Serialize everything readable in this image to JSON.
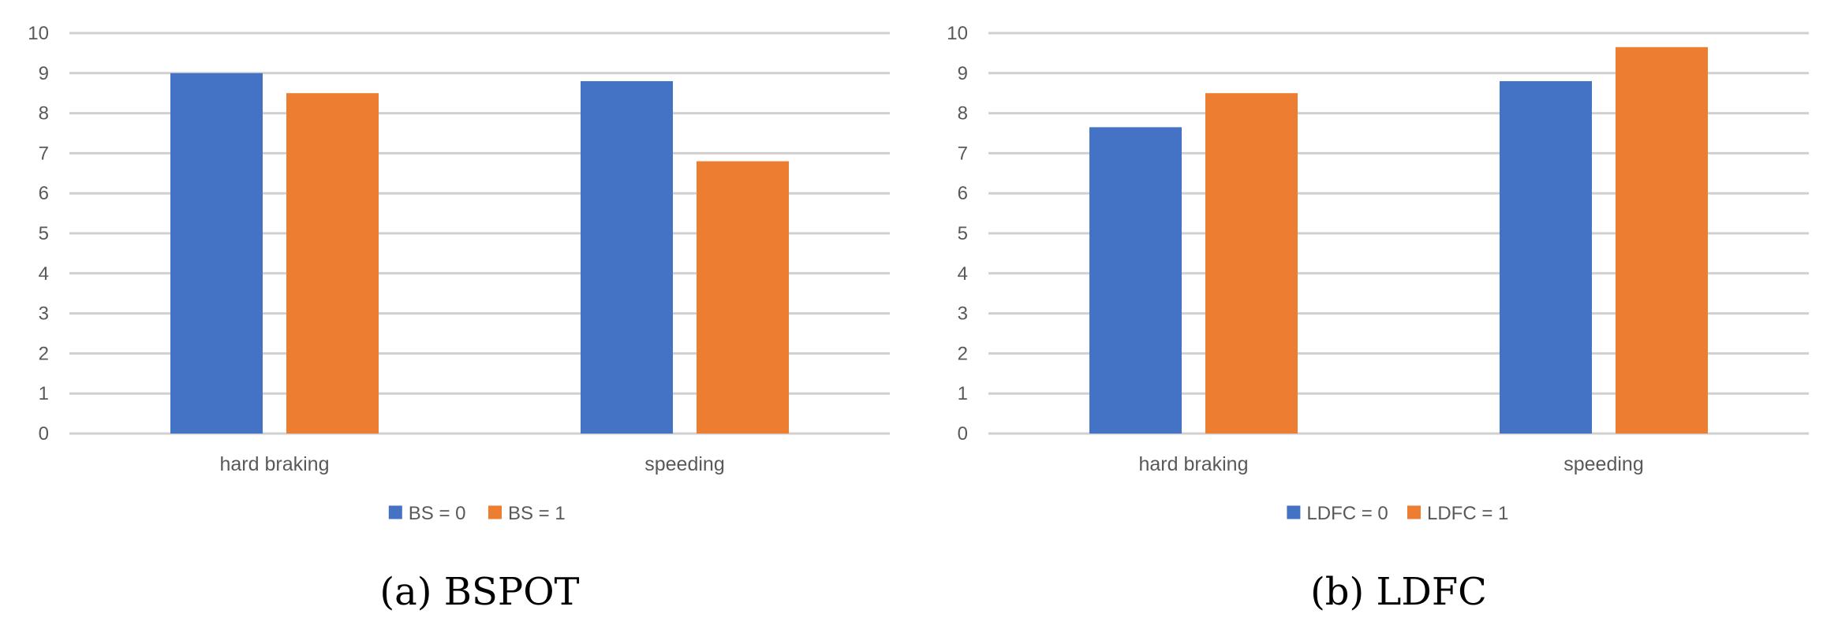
{
  "chart_data": [
    {
      "type": "bar",
      "caption": "(a) BSPOT",
      "categories": [
        "hard braking",
        "speeding"
      ],
      "series": [
        {
          "name": "BS = 0",
          "color": "#4472C4",
          "values": [
            9.0,
            8.8
          ]
        },
        {
          "name": "BS = 1",
          "color": "#ED7D31",
          "values": [
            8.5,
            6.8
          ]
        }
      ],
      "yticks": [
        "0",
        "1",
        "2",
        "3",
        "4",
        "5",
        "6",
        "7",
        "8",
        "9",
        "10"
      ],
      "ylim": [
        0,
        10
      ],
      "grid": true,
      "legend": "bottom"
    },
    {
      "type": "bar",
      "caption": "(b) LDFC",
      "categories": [
        "hard braking",
        "speeding"
      ],
      "series": [
        {
          "name": "LDFC = 0",
          "color": "#4472C4",
          "values": [
            7.65,
            8.8
          ]
        },
        {
          "name": "LDFC = 1",
          "color": "#ED7D31",
          "values": [
            8.5,
            9.65
          ]
        }
      ],
      "yticks": [
        "0",
        "1",
        "2",
        "3",
        "4",
        "5",
        "6",
        "7",
        "8",
        "9",
        "10"
      ],
      "ylim": [
        0,
        10
      ],
      "grid": true,
      "legend": "bottom"
    }
  ]
}
